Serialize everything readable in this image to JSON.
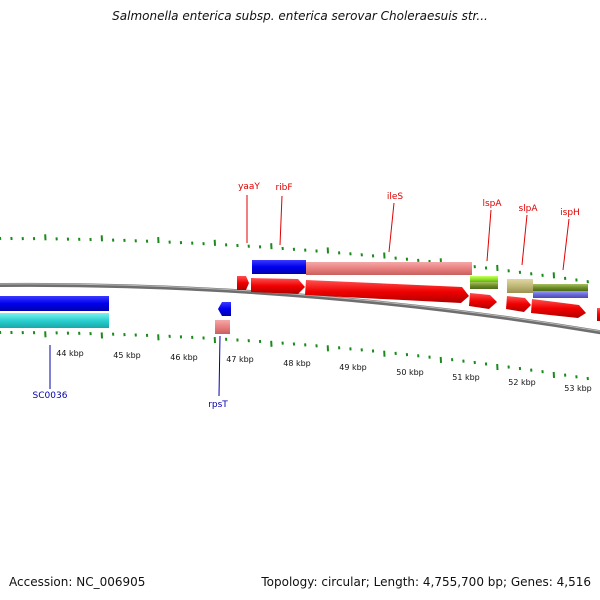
{
  "title": "Salmonella enterica subsp. enterica serovar Choleraesuis str...",
  "footer": {
    "accession": "Accession: NC_006905",
    "summary": "Topology: circular; Length: 4,755,700 bp; Genes: 4,516"
  },
  "colors": {
    "top_label": "#e00000",
    "bottom_label": "#0000aa",
    "tick": "#1a8a1a",
    "backbone": "#8c8c8c"
  },
  "kbp_labels": [
    "44 kbp",
    "45 kbp",
    "46 kbp",
    "47 kbp",
    "48 kbp",
    "49 kbp",
    "50 kbp",
    "51 kbp",
    "52 kbp",
    "53 kbp"
  ],
  "top_gene_labels": [
    "yaaY",
    "ribF",
    "ileS",
    "lspA",
    "slpA",
    "ispH"
  ],
  "bottom_gene_labels": [
    "SC0036",
    "rpsT"
  ]
}
